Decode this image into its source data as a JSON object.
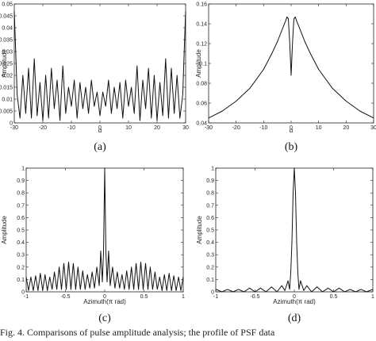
{
  "caption": "Fig. 4.  Comparisons of pulse amplitude analysis; the profile of PSF data",
  "chart_data": [
    {
      "type": "line",
      "panel_label": "(a)",
      "xlabel": "α",
      "ylabel": "Amplitude",
      "xlim": [
        -30,
        30
      ],
      "ylim": [
        0,
        0.05
      ],
      "xticks": [
        -30,
        -20,
        -10,
        0,
        10,
        20,
        30
      ],
      "yticks": [
        0,
        0.005,
        0.01,
        0.015,
        0.02,
        0.025,
        0.03,
        0.035,
        0.04,
        0.045,
        0.05
      ],
      "ytick_labels": [
        "0",
        "0.005",
        "0.01",
        "0.015",
        "0.02",
        "0.025",
        "0.03",
        "0.035",
        "0.04",
        "0.045",
        "0.05"
      ],
      "grid": false,
      "series": [
        {
          "x": [
            -30,
            -29.5,
            -29,
            -28,
            -27,
            -26,
            -25,
            -24,
            -23,
            -22,
            -21,
            -20,
            -19,
            -18,
            -17,
            -16,
            -15,
            -14,
            -13,
            -12,
            -11,
            -10,
            -9,
            -8,
            -7,
            -6,
            -5,
            -4,
            -3,
            -2,
            -1,
            0,
            1,
            2,
            3,
            4,
            5,
            6,
            7,
            8,
            9,
            10,
            11,
            12,
            13,
            14,
            15,
            16,
            17,
            18,
            19,
            20,
            21,
            22,
            23,
            24,
            25,
            26,
            27,
            28,
            29,
            29.5,
            30
          ],
          "y": [
            0.047,
            0.03,
            0.012,
            0.002,
            0.02,
            0.004,
            0.023,
            0.002,
            0.027,
            0.003,
            0.017,
            0.001,
            0.02,
            0.002,
            0.023,
            0.006,
            0.018,
            0.001,
            0.024,
            0.004,
            0.015,
            0.007,
            0.018,
            0.002,
            0.017,
            0.006,
            0.015,
            0.004,
            0.018,
            0.007,
            0.013,
            0.003,
            0.013,
            0.007,
            0.018,
            0.004,
            0.015,
            0.006,
            0.017,
            0.002,
            0.018,
            0.007,
            0.015,
            0.004,
            0.024,
            0.001,
            0.018,
            0.006,
            0.023,
            0.002,
            0.02,
            0.001,
            0.017,
            0.003,
            0.027,
            0.002,
            0.023,
            0.004,
            0.02,
            0.002,
            0.012,
            0.03,
            0.047
          ]
        }
      ]
    },
    {
      "type": "line",
      "panel_label": "(b)",
      "xlabel": "α",
      "ylabel": "Amplitude",
      "xlim": [
        -30,
        30
      ],
      "ylim": [
        0.04,
        0.16
      ],
      "xticks": [
        -30,
        -20,
        -10,
        0,
        10,
        20,
        30
      ],
      "yticks": [
        0.04,
        0.06,
        0.08,
        0.1,
        0.12,
        0.14,
        0.16
      ],
      "ytick_labels": [
        "0.04",
        "0.06",
        "0.08",
        "0.1",
        "0.12",
        "0.14",
        "0.16"
      ],
      "grid": false,
      "series": [
        {
          "x": [
            -30,
            -25,
            -20,
            -15,
            -10,
            -7,
            -5,
            -3,
            -2,
            -1.5,
            -1,
            -0.5,
            0,
            0.5,
            1,
            1.5,
            2,
            3,
            5,
            7,
            10,
            15,
            20,
            25,
            30
          ],
          "y": [
            0.045,
            0.052,
            0.062,
            0.075,
            0.094,
            0.11,
            0.122,
            0.136,
            0.143,
            0.147,
            0.145,
            0.12,
            0.088,
            0.12,
            0.145,
            0.147,
            0.143,
            0.136,
            0.122,
            0.11,
            0.094,
            0.075,
            0.062,
            0.052,
            0.045
          ]
        }
      ]
    },
    {
      "type": "line",
      "panel_label": "(c)",
      "xlabel": "Azimuth(π rad)",
      "ylabel": "Amplitude",
      "xlim": [
        -1,
        1
      ],
      "ylim": [
        0,
        1
      ],
      "xticks": [
        -1,
        -0.5,
        0,
        0.5,
        1
      ],
      "yticks": [
        0,
        0.1,
        0.2,
        0.3,
        0.4,
        0.5,
        0.6,
        0.7,
        0.8,
        0.9,
        1
      ],
      "ytick_labels": [
        "0",
        "0.1",
        "0.2",
        "0.3",
        "0.4",
        "0.5",
        "0.6",
        "0.7",
        "0.8",
        "0.9",
        "1"
      ],
      "grid": false,
      "series": [
        {
          "x": [
            -1,
            -0.97,
            -0.94,
            -0.91,
            -0.88,
            -0.85,
            -0.82,
            -0.79,
            -0.76,
            -0.73,
            -0.7,
            -0.67,
            -0.64,
            -0.61,
            -0.58,
            -0.55,
            -0.52,
            -0.49,
            -0.46,
            -0.43,
            -0.4,
            -0.37,
            -0.34,
            -0.31,
            -0.28,
            -0.25,
            -0.22,
            -0.19,
            -0.16,
            -0.13,
            -0.1,
            -0.07,
            -0.05,
            -0.03,
            -0.015,
            0,
            0.015,
            0.03,
            0.05,
            0.07,
            0.1,
            0.13,
            0.16,
            0.19,
            0.22,
            0.25,
            0.28,
            0.31,
            0.34,
            0.37,
            0.4,
            0.43,
            0.46,
            0.49,
            0.52,
            0.55,
            0.58,
            0.61,
            0.64,
            0.67,
            0.7,
            0.73,
            0.76,
            0.79,
            0.82,
            0.85,
            0.88,
            0.91,
            0.94,
            0.97,
            1
          ],
          "y": [
            0.12,
            0.01,
            0.12,
            0.01,
            0.13,
            0.01,
            0.15,
            0.01,
            0.14,
            0.01,
            0.12,
            0.02,
            0.16,
            0.02,
            0.2,
            0.02,
            0.23,
            0.02,
            0.24,
            0.02,
            0.23,
            0.02,
            0.2,
            0.02,
            0.17,
            0.02,
            0.14,
            0.03,
            0.16,
            0.03,
            0.2,
            0.05,
            0.33,
            0.08,
            0.32,
            1.0,
            0.32,
            0.08,
            0.33,
            0.05,
            0.2,
            0.03,
            0.16,
            0.03,
            0.14,
            0.02,
            0.17,
            0.02,
            0.2,
            0.02,
            0.23,
            0.02,
            0.24,
            0.02,
            0.23,
            0.02,
            0.2,
            0.02,
            0.16,
            0.02,
            0.12,
            0.01,
            0.14,
            0.01,
            0.15,
            0.01,
            0.13,
            0.01,
            0.12,
            0.01,
            0.12
          ]
        }
      ]
    },
    {
      "type": "line",
      "panel_label": "(d)",
      "xlabel": "Azimuth(π rad)",
      "ylabel": "Amplitude",
      "xlim": [
        -1,
        1
      ],
      "ylim": [
        0,
        1
      ],
      "xticks": [
        -1,
        -0.5,
        0,
        0.5,
        1
      ],
      "yticks": [
        0,
        0.1,
        0.2,
        0.3,
        0.4,
        0.5,
        0.6,
        0.7,
        0.8,
        0.9,
        1
      ],
      "ytick_labels": [
        "0",
        "0.1",
        "0.2",
        "0.3",
        "0.4",
        "0.5",
        "0.6",
        "0.7",
        "0.8",
        "0.9",
        "1"
      ],
      "grid": false,
      "series": [
        {
          "x": [
            -1,
            -0.92,
            -0.85,
            -0.78,
            -0.71,
            -0.64,
            -0.57,
            -0.5,
            -0.43,
            -0.36,
            -0.29,
            -0.22,
            -0.16,
            -0.12,
            -0.08,
            -0.06,
            -0.045,
            -0.03,
            -0.015,
            0,
            0.015,
            0.03,
            0.045,
            0.06,
            0.08,
            0.12,
            0.16,
            0.22,
            0.29,
            0.36,
            0.43,
            0.5,
            0.57,
            0.64,
            0.71,
            0.78,
            0.85,
            0.92,
            1
          ],
          "y": [
            0.02,
            0.0,
            0.02,
            0.0,
            0.02,
            0.0,
            0.03,
            0.0,
            0.03,
            0.0,
            0.04,
            0.0,
            0.05,
            0.01,
            0.09,
            0.02,
            0.15,
            0.4,
            0.8,
            1.0,
            0.8,
            0.4,
            0.15,
            0.02,
            0.09,
            0.01,
            0.05,
            0.0,
            0.04,
            0.0,
            0.03,
            0.0,
            0.03,
            0.0,
            0.02,
            0.0,
            0.02,
            0.0,
            0.02
          ]
        }
      ]
    }
  ]
}
